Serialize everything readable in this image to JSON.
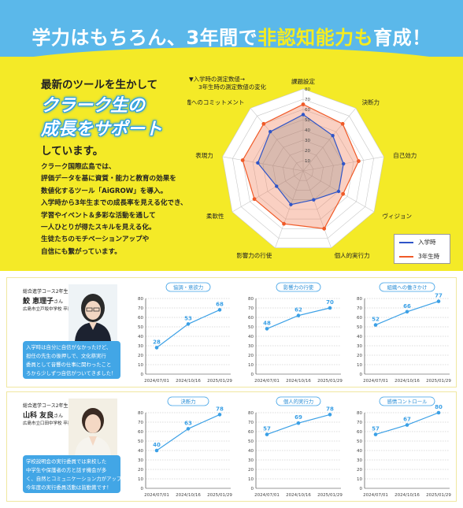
{
  "header": {
    "title_part1": "学力はもちろん、3年間で",
    "title_highlight": "非認知能力も",
    "title_part2": "育成！"
  },
  "intro": {
    "line1": "最新のツールを生かして",
    "big_a": "クラーク生の",
    "big_b": "成長をサポート",
    "line4": "しています。",
    "body": [
      "クラーク国際広島では、",
      "評価データを基に資質・能力と教育の効果を",
      "数値化するツール「AiGROW」を導入。",
      "入学時から3年生までの成長率を見える化でき、",
      "学習やイベント＆多彩な活動を通して",
      "一人ひとりが得たスキルを見える化。",
      "生徒たちのモチベーションアップや",
      "自信にも繋がっています。"
    ]
  },
  "radar": {
    "note_line1": "▼入学時の測定数値→",
    "note_line2": "3年生時の測定数値の変化",
    "legend": [
      {
        "name": "入学時",
        "color": "#2f55c8"
      },
      {
        "name": "3年生時",
        "color": "#f05a28"
      }
    ],
    "max": 80,
    "ticks": [
      "10",
      "20",
      "30",
      "40",
      "50",
      "60",
      "70",
      "80"
    ],
    "axes": [
      "課題設定",
      "決断力",
      "自己効力",
      "ヴィジョン",
      "個人的実行力",
      "影響力の行使",
      "柔軟性",
      "表現力",
      "組織へのコミットメント"
    ],
    "entry": [
      55,
      45,
      40,
      40,
      30,
      35,
      30,
      45,
      50
    ],
    "grade3": [
      65,
      60,
      55,
      45,
      60,
      55,
      55,
      60,
      60
    ]
  },
  "students": [
    {
      "course": "総合進学コース2年生",
      "name": "鮫 恵理子",
      "suffix": "さん",
      "school": "広島市立戸坂中学校 卒業",
      "comment": [
        "入学時は自分に自信がなかったけど、",
        "担任の先生の後押しで、文化祭実行",
        "委員として音響の仕事に関わったこと",
        "ろから少しずつ自信がついてきました！"
      ],
      "charts": [
        {
          "label": "協調・意欲力",
          "values": [
            28,
            53,
            68
          ]
        },
        {
          "label": "影響力の行使",
          "values": [
            48,
            62,
            70
          ]
        },
        {
          "label": "組織への働きかけ",
          "values": [
            52,
            66,
            77
          ]
        }
      ]
    },
    {
      "course": "総合進学コース2年生",
      "name": "山科 友良",
      "suffix": "さん",
      "school": "広島市立口田中学校 卒業",
      "comment": [
        "学校説明会の実行委員では来校した",
        "中学生や保護者の方と話す機会が多",
        "く、自然とコミュニケーション力がアップ！",
        "今年度の実行委員活動は皆勤賞です！"
      ],
      "charts": [
        {
          "label": "決断力",
          "values": [
            40,
            63,
            78
          ]
        },
        {
          "label": "個人的実行力",
          "values": [
            57,
            69,
            78
          ]
        },
        {
          "label": "感情コントロール",
          "values": [
            57,
            67,
            80
          ]
        }
      ]
    }
  ],
  "line_chart_common": {
    "dates": [
      "2024/07/01",
      "2024/10/16",
      "2025/01/29"
    ],
    "y_ticks": [
      "0",
      "10",
      "20",
      "30",
      "40",
      "50",
      "60",
      "70",
      "80"
    ],
    "ymax": 80,
    "color": "#3ba0e6"
  },
  "chart_data": [
    {
      "type": "radar",
      "categories": [
        "課題設定",
        "決断力",
        "自己効力",
        "ヴィジョン",
        "個人的実行力",
        "影響力の行使",
        "柔軟性",
        "表現力",
        "組織へのコミットメント"
      ],
      "series": [
        {
          "name": "入学時",
          "values": [
            55,
            45,
            40,
            40,
            30,
            35,
            30,
            45,
            50
          ]
        },
        {
          "name": "3年生時",
          "values": [
            65,
            60,
            55,
            45,
            60,
            55,
            55,
            60,
            60
          ]
        }
      ],
      "ylim": [
        0,
        80
      ]
    },
    {
      "type": "line",
      "title": "協調・意欲力",
      "x": [
        "2024/07/01",
        "2024/10/16",
        "2025/01/29"
      ],
      "values": [
        28,
        53,
        68
      ],
      "ylim": [
        0,
        80
      ]
    },
    {
      "type": "line",
      "title": "影響力の行使",
      "x": [
        "2024/07/01",
        "2024/10/16",
        "2025/01/29"
      ],
      "values": [
        48,
        62,
        70
      ],
      "ylim": [
        0,
        80
      ]
    },
    {
      "type": "line",
      "title": "組織への働きかけ",
      "x": [
        "2024/07/01",
        "2024/10/16",
        "2025/01/29"
      ],
      "values": [
        52,
        66,
        77
      ],
      "ylim": [
        0,
        80
      ]
    },
    {
      "type": "line",
      "title": "決断力",
      "x": [
        "2024/07/01",
        "2024/10/16",
        "2025/01/29"
      ],
      "values": [
        40,
        63,
        78
      ],
      "ylim": [
        0,
        80
      ]
    },
    {
      "type": "line",
      "title": "個人的実行力",
      "x": [
        "2024/07/01",
        "2024/10/16",
        "2025/01/29"
      ],
      "values": [
        57,
        69,
        78
      ],
      "ylim": [
        0,
        80
      ]
    },
    {
      "type": "line",
      "title": "感情コントロール",
      "x": [
        "2024/07/01",
        "2024/10/16",
        "2025/01/29"
      ],
      "values": [
        57,
        67,
        80
      ],
      "ylim": [
        0,
        80
      ]
    }
  ]
}
